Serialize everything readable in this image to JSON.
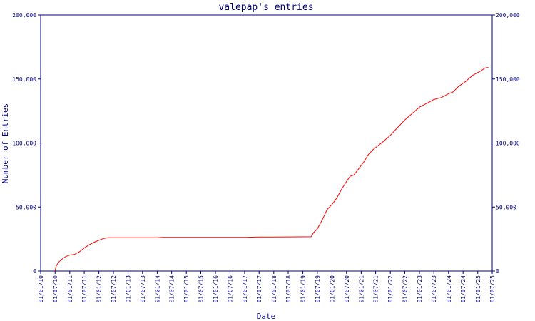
{
  "chart_data": {
    "type": "line",
    "title": "valepap's entries",
    "xlabel": "Date",
    "ylabel": "Number of Entries",
    "ylim": [
      0,
      200000
    ],
    "yticks": [
      0,
      50000,
      100000,
      150000,
      200000
    ],
    "ytick_labels": [
      "0",
      "50,000",
      "100,000",
      "150,000",
      "200,000"
    ],
    "xticks": [
      "2010-01-01",
      "2010-07-01",
      "2011-01-01",
      "2011-07-01",
      "2012-01-01",
      "2012-07-01",
      "2013-01-01",
      "2013-07-01",
      "2014-01-01",
      "2014-07-01",
      "2015-01-01",
      "2015-07-01",
      "2016-01-01",
      "2016-07-01",
      "2017-01-01",
      "2017-07-01",
      "2018-01-01",
      "2018-07-01",
      "2019-01-01",
      "2019-07-01",
      "2020-01-01",
      "2020-07-01",
      "2021-01-01",
      "2021-07-01",
      "2022-01-01",
      "2022-07-01",
      "2023-01-01",
      "2023-07-01",
      "2024-01-01",
      "2024-07-01",
      "2025-01-01",
      "2025-07-01"
    ],
    "xtick_labels": [
      "01/01/10",
      "01/07/10",
      "01/01/11",
      "01/07/11",
      "01/01/12",
      "01/07/12",
      "01/01/13",
      "01/07/13",
      "01/01/14",
      "01/07/14",
      "01/01/15",
      "01/07/15",
      "01/01/16",
      "01/07/16",
      "01/01/17",
      "01/07/17",
      "01/01/18",
      "01/07/18",
      "01/01/19",
      "01/07/19",
      "01/01/20",
      "01/07/20",
      "01/01/21",
      "01/07/21",
      "01/01/22",
      "01/07/22",
      "01/01/23",
      "01/07/23",
      "01/01/24",
      "01/07/24",
      "01/01/25",
      "01/07/25"
    ],
    "xlim": [
      "2010-01-01",
      "2025-07-01"
    ],
    "grid": false,
    "right_axis": true,
    "series": [
      {
        "color": "#ff0000",
        "points": [
          [
            "2010-07-01",
            0
          ],
          [
            "2010-07-15",
            4000
          ],
          [
            "2010-08-15",
            7000
          ],
          [
            "2010-10-01",
            9500
          ],
          [
            "2010-11-15",
            11500
          ],
          [
            "2011-01-01",
            12500
          ],
          [
            "2011-03-01",
            13000
          ],
          [
            "2011-05-01",
            15000
          ],
          [
            "2011-07-01",
            18000
          ],
          [
            "2011-09-01",
            20500
          ],
          [
            "2011-11-01",
            22500
          ],
          [
            "2012-01-01",
            24000
          ],
          [
            "2012-03-01",
            25500
          ],
          [
            "2012-05-01",
            26000
          ],
          [
            "2013-01-01",
            26000
          ],
          [
            "2014-01-01",
            26000
          ],
          [
            "2014-03-01",
            26300
          ],
          [
            "2015-01-01",
            26300
          ],
          [
            "2016-01-01",
            26300
          ],
          [
            "2017-01-01",
            26300
          ],
          [
            "2017-07-01",
            26600
          ],
          [
            "2018-07-01",
            26700
          ],
          [
            "2019-04-15",
            26800
          ],
          [
            "2019-05-15",
            30000
          ],
          [
            "2019-07-01",
            33000
          ],
          [
            "2019-09-01",
            40000
          ],
          [
            "2019-11-01",
            48000
          ],
          [
            "2020-01-01",
            52000
          ],
          [
            "2020-03-01",
            57000
          ],
          [
            "2020-05-01",
            64000
          ],
          [
            "2020-07-01",
            70000
          ],
          [
            "2020-08-15",
            74000
          ],
          [
            "2020-10-01",
            75000
          ],
          [
            "2020-12-01",
            80000
          ],
          [
            "2021-02-01",
            85000
          ],
          [
            "2021-04-01",
            91000
          ],
          [
            "2021-06-01",
            95000
          ],
          [
            "2021-08-01",
            98000
          ],
          [
            "2021-10-01",
            101000
          ],
          [
            "2022-01-01",
            106000
          ],
          [
            "2022-04-01",
            112000
          ],
          [
            "2022-07-01",
            118000
          ],
          [
            "2022-10-01",
            123000
          ],
          [
            "2023-01-01",
            128000
          ],
          [
            "2023-04-01",
            131000
          ],
          [
            "2023-07-01",
            134000
          ],
          [
            "2023-10-01",
            135500
          ],
          [
            "2024-01-01",
            138500
          ],
          [
            "2024-03-01",
            140000
          ],
          [
            "2024-05-01",
            144000
          ],
          [
            "2024-08-01",
            148000
          ],
          [
            "2024-11-01",
            153000
          ],
          [
            "2025-02-01",
            156000
          ],
          [
            "2025-04-01",
            158500
          ],
          [
            "2025-05-15",
            159000
          ]
        ]
      }
    ]
  }
}
